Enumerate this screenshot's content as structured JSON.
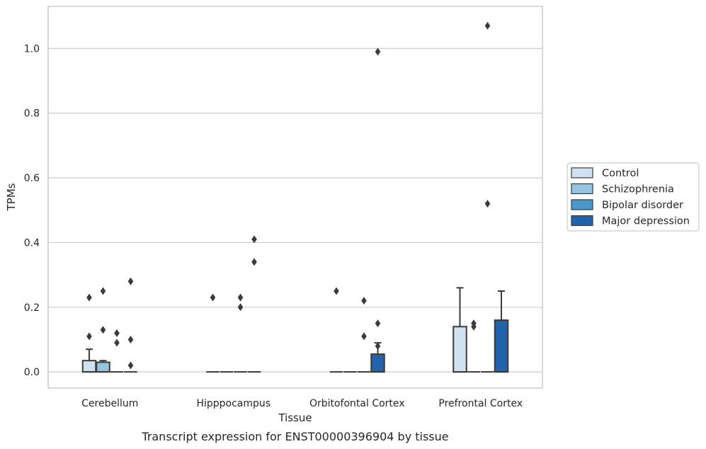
{
  "colors": {
    "Control": "#d0e1f2",
    "Schizophrenia": "#94c4df",
    "Bipolar disorder": "#4a98c9",
    "Major depression": "#2164ab",
    "edge": "#3a3a3a",
    "grid": "#cccccc",
    "frame": "#cccccc"
  },
  "chart_data": {
    "type": "box",
    "title": "",
    "caption": "Transcript expression for ENST00000396904 by tissue",
    "xlabel": "Tissue",
    "ylabel": "TPMs",
    "ylim": [
      -0.05,
      1.13
    ],
    "yticks": [
      0.0,
      0.2,
      0.4,
      0.6,
      0.8,
      1.0
    ],
    "ytick_labels": [
      "0.0",
      "0.2",
      "0.4",
      "0.6",
      "0.8",
      "1.0"
    ],
    "grid": "horizontal",
    "legend_position": "right",
    "categories": [
      "Cerebellum",
      "Hipppocampus",
      "Orbitofontal Cortex",
      "Prefrontal Cortex"
    ],
    "series": [
      {
        "name": "Control",
        "boxes": [
          {
            "q1": 0.0,
            "median": 0.0,
            "q3": 0.035,
            "whisker_low": 0.0,
            "whisker_high": 0.07,
            "outliers": [
              0.11,
              0.23
            ]
          },
          {
            "q1": 0.0,
            "median": 0.0,
            "q3": 0.0,
            "whisker_low": 0.0,
            "whisker_high": 0.0,
            "outliers": [
              0.23
            ]
          },
          {
            "q1": 0.0,
            "median": 0.0,
            "q3": 0.0,
            "whisker_low": 0.0,
            "whisker_high": 0.0,
            "outliers": [
              0.25
            ]
          },
          {
            "q1": 0.0,
            "median": 0.0,
            "q3": 0.14,
            "whisker_low": 0.0,
            "whisker_high": 0.26,
            "outliers": []
          }
        ]
      },
      {
        "name": "Schizophrenia",
        "boxes": [
          {
            "q1": 0.0,
            "median": 0.0,
            "q3": 0.03,
            "whisker_low": 0.0,
            "whisker_high": 0.035,
            "outliers": [
              0.13,
              0.25
            ]
          },
          {
            "q1": 0.0,
            "median": 0.0,
            "q3": 0.0,
            "whisker_low": 0.0,
            "whisker_high": 0.0,
            "outliers": []
          },
          {
            "q1": 0.0,
            "median": 0.0,
            "q3": 0.0,
            "whisker_low": 0.0,
            "whisker_high": 0.0,
            "outliers": []
          },
          {
            "q1": 0.0,
            "median": 0.0,
            "q3": 0.0,
            "whisker_low": 0.0,
            "whisker_high": 0.0,
            "outliers": [
              0.14,
              0.15
            ]
          }
        ]
      },
      {
        "name": "Bipolar disorder",
        "boxes": [
          {
            "q1": 0.0,
            "median": 0.0,
            "q3": 0.0,
            "whisker_low": 0.0,
            "whisker_high": 0.0,
            "outliers": [
              0.09,
              0.12
            ]
          },
          {
            "q1": 0.0,
            "median": 0.0,
            "q3": 0.0,
            "whisker_low": 0.0,
            "whisker_high": 0.0,
            "outliers": [
              0.2,
              0.23
            ]
          },
          {
            "q1": 0.0,
            "median": 0.0,
            "q3": 0.0,
            "whisker_low": 0.0,
            "whisker_high": 0.0,
            "outliers": [
              0.11,
              0.22
            ]
          },
          {
            "q1": 0.0,
            "median": 0.0,
            "q3": 0.0,
            "whisker_low": 0.0,
            "whisker_high": 0.0,
            "outliers": [
              0.52,
              1.07
            ]
          }
        ]
      },
      {
        "name": "Major depression",
        "boxes": [
          {
            "q1": 0.0,
            "median": 0.0,
            "q3": 0.0,
            "whisker_low": 0.0,
            "whisker_high": 0.0,
            "outliers": [
              0.02,
              0.1,
              0.28
            ]
          },
          {
            "q1": 0.0,
            "median": 0.0,
            "q3": 0.0,
            "whisker_low": 0.0,
            "whisker_high": 0.0,
            "outliers": [
              0.34,
              0.41
            ]
          },
          {
            "q1": 0.0,
            "median": 0.0,
            "q3": 0.055,
            "whisker_low": 0.0,
            "whisker_high": 0.09,
            "outliers": [
              0.08,
              0.15,
              0.99
            ]
          },
          {
            "q1": 0.0,
            "median": 0.0,
            "q3": 0.16,
            "whisker_low": 0.0,
            "whisker_high": 0.25,
            "outliers": []
          }
        ]
      }
    ]
  }
}
